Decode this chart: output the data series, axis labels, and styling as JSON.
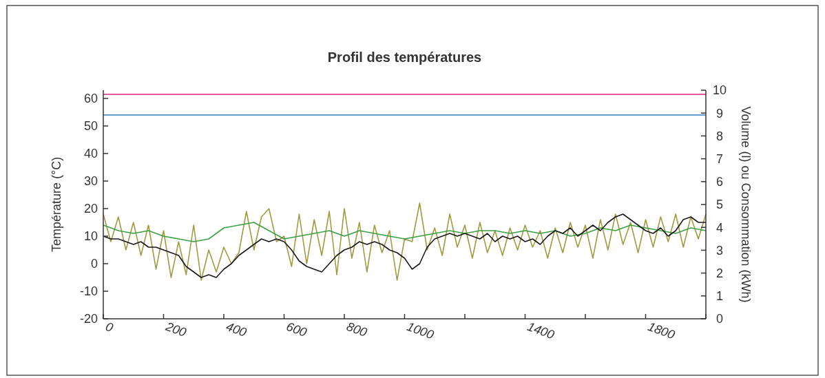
{
  "chart_data": {
    "type": "line",
    "title": "Profil des températures",
    "ylabel": "Température (°C)",
    "y2label": "Volume (l) ou Consommation (kWh)",
    "xlim": [
      0,
      2000
    ],
    "xticks": [
      0,
      200,
      400,
      600,
      800,
      1000,
      {
        "value": 1200,
        "label": null
      },
      1400,
      {
        "value": 1600,
        "label": null
      },
      1800,
      {
        "value": 2000,
        "label": null
      }
    ],
    "ylim": [
      -20,
      63
    ],
    "yticks": [
      -20,
      -10,
      0,
      10,
      20,
      30,
      40,
      50,
      60
    ],
    "y2lim": [
      0,
      10
    ],
    "y2ticks": [
      0,
      1,
      2,
      3,
      4,
      5,
      6,
      7,
      8,
      9,
      10
    ],
    "grid": false,
    "marker": "none",
    "line_style": "solid",
    "series": [
      {
        "color": "#e0207a",
        "x": [
          0,
          2000
        ],
        "values": [
          61.5,
          61.5
        ]
      },
      {
        "color": "#2a7fc0",
        "x": [
          0,
          2000
        ],
        "values": [
          54,
          54
        ]
      },
      {
        "color": "#a09a40",
        "x": [
          0,
          25,
          50,
          75,
          100,
          125,
          150,
          175,
          200,
          225,
          250,
          275,
          300,
          325,
          350,
          375,
          400,
          425,
          450,
          475,
          500,
          525,
          550,
          575,
          600,
          625,
          650,
          675,
          700,
          725,
          750,
          775,
          800,
          825,
          850,
          875,
          900,
          925,
          950,
          975,
          1000,
          1025,
          1050,
          1075,
          1100,
          1125,
          1150,
          1175,
          1200,
          1225,
          1250,
          1275,
          1300,
          1325,
          1350,
          1375,
          1400,
          1425,
          1450,
          1475,
          1500,
          1525,
          1550,
          1575,
          1600,
          1625,
          1650,
          1675,
          1700,
          1725,
          1750,
          1775,
          1800,
          1825,
          1850,
          1875,
          1900,
          1925,
          1950,
          1975,
          2000
        ],
        "values": [
          18,
          8,
          17,
          5,
          15,
          3,
          14,
          -2,
          12,
          -5,
          8,
          -4,
          14,
          -6,
          5,
          -3,
          6,
          0,
          4,
          19,
          5,
          17,
          20,
          8,
          10,
          -1,
          18,
          0,
          16,
          3,
          19,
          -4,
          20,
          2,
          15,
          -3,
          14,
          4,
          12,
          -6,
          9,
          8,
          22,
          5,
          13,
          3,
          18,
          6,
          14,
          2,
          15,
          4,
          12,
          3,
          13,
          5,
          14,
          6,
          12,
          2,
          13,
          4,
          15,
          6,
          14,
          2,
          16,
          5,
          18,
          7,
          15,
          4,
          16,
          6,
          17,
          8,
          18,
          6,
          17,
          9,
          18
        ]
      },
      {
        "color": "#3aa040",
        "x": [
          0,
          50,
          100,
          150,
          200,
          250,
          300,
          350,
          400,
          450,
          500,
          550,
          600,
          650,
          700,
          750,
          800,
          850,
          900,
          950,
          1000,
          1050,
          1100,
          1150,
          1200,
          1250,
          1300,
          1350,
          1400,
          1450,
          1500,
          1550,
          1600,
          1650,
          1700,
          1750,
          1800,
          1850,
          1900,
          1950,
          2000
        ],
        "values": [
          14,
          12,
          11,
          12,
          10,
          9,
          8,
          9,
          13,
          14,
          15,
          12,
          9,
          10,
          11,
          12,
          10,
          12,
          11,
          10,
          9,
          10,
          11,
          12,
          11,
          12,
          12,
          11,
          12,
          11,
          12,
          10,
          11,
          13,
          12,
          14,
          13,
          12,
          11,
          13,
          12
        ]
      },
      {
        "color": "#1a1a1a",
        "x": [
          0,
          25,
          50,
          75,
          100,
          125,
          150,
          175,
          200,
          225,
          250,
          275,
          300,
          325,
          350,
          375,
          400,
          425,
          450,
          475,
          500,
          525,
          550,
          575,
          600,
          625,
          650,
          675,
          700,
          725,
          750,
          775,
          800,
          825,
          850,
          875,
          900,
          925,
          950,
          975,
          1000,
          1025,
          1050,
          1075,
          1100,
          1125,
          1150,
          1175,
          1200,
          1225,
          1250,
          1275,
          1300,
          1325,
          1350,
          1375,
          1400,
          1425,
          1450,
          1475,
          1500,
          1525,
          1550,
          1575,
          1600,
          1625,
          1650,
          1675,
          1700,
          1725,
          1750,
          1775,
          1800,
          1825,
          1850,
          1875,
          1900,
          1925,
          1950,
          1975,
          2000
        ],
        "values": [
          10,
          9,
          9,
          8,
          7,
          8,
          6,
          6,
          5,
          4,
          3,
          -1,
          -3,
          -5,
          -4,
          -5,
          -2,
          0,
          3,
          5,
          7,
          9,
          8,
          9,
          8,
          5,
          1,
          -1,
          -2,
          -3,
          0,
          3,
          5,
          6,
          8,
          7,
          8,
          7,
          5,
          4,
          2,
          -2,
          0,
          6,
          9,
          10,
          11,
          10,
          11,
          10,
          9,
          11,
          8,
          10,
          9,
          10,
          8,
          9,
          7,
          10,
          12,
          11,
          13,
          10,
          12,
          14,
          12,
          15,
          17,
          18,
          16,
          14,
          12,
          11,
          13,
          10,
          12,
          16,
          17,
          15,
          15
        ]
      }
    ]
  }
}
